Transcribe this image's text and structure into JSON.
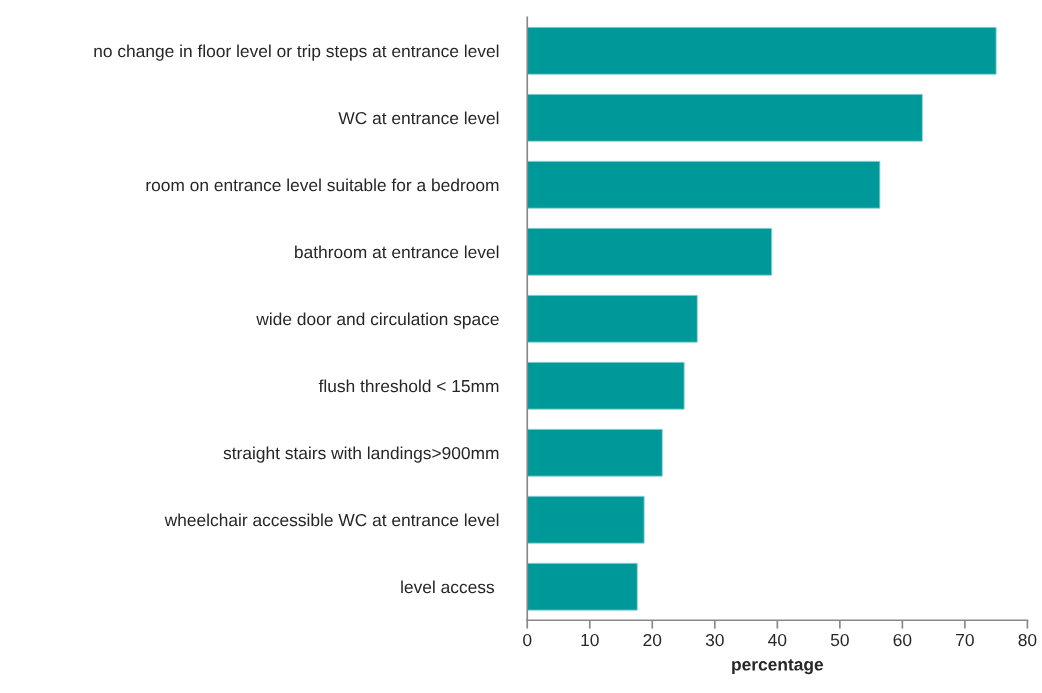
{
  "chart_data": {
    "type": "bar",
    "orientation": "horizontal",
    "xlabel": "percentage",
    "categories": [
      "no change in floor level or trip steps at entrance level",
      "WC at entrance level",
      "room on entrance level suitable for a bedroom",
      "bathroom at entrance level",
      "wide door and circulation space",
      "flush threshold < 15mm",
      "straight stairs with landings>900mm",
      "wheelchair accessible WC at entrance level",
      "level access "
    ],
    "values": [
      75.0,
      63.2,
      56.4,
      39.1,
      27.2,
      25.1,
      21.6,
      18.7,
      17.6
    ],
    "color": "#009999",
    "xlim": [
      0,
      80
    ],
    "xticks": [
      0,
      10,
      20,
      30,
      40,
      50,
      60,
      70,
      80
    ],
    "grid": false,
    "legend": false
  }
}
